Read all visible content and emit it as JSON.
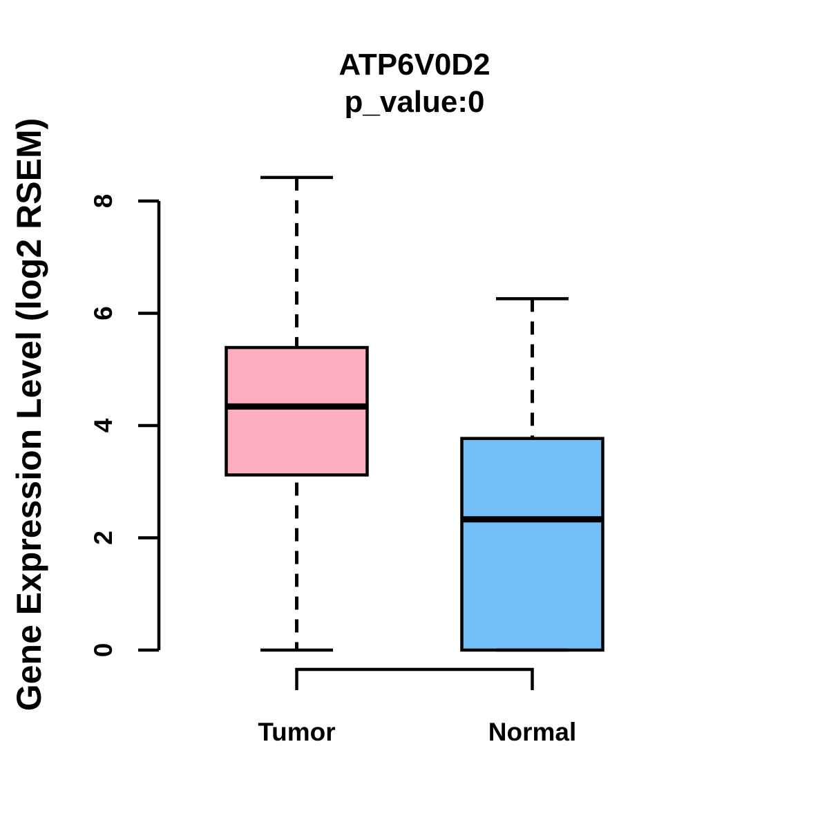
{
  "chart_data": {
    "type": "boxplot",
    "title": "ATP6V0D2",
    "subtitle": "p_value:0",
    "ylabel": "Gene Expression Level (log2 RSEM)",
    "xlabel": "",
    "categories": [
      "Tumor",
      "Normal"
    ],
    "y_ticks": [
      0,
      2,
      4,
      6,
      8
    ],
    "ylim": [
      0,
      8.5
    ],
    "grid": false,
    "legend": "none",
    "line_color": "#000000",
    "series": [
      {
        "name": "Tumor",
        "fill_color": "#FFAEC0",
        "lower_whisker": 0,
        "q1": 3.12,
        "median": 4.34,
        "q3": 5.39,
        "upper_whisker": 8.42
      },
      {
        "name": "Normal",
        "fill_color": "#74BFF7",
        "lower_whisker": 0,
        "q1": 0,
        "median": 2.33,
        "q3": 3.77,
        "upper_whisker": 6.26
      }
    ]
  }
}
